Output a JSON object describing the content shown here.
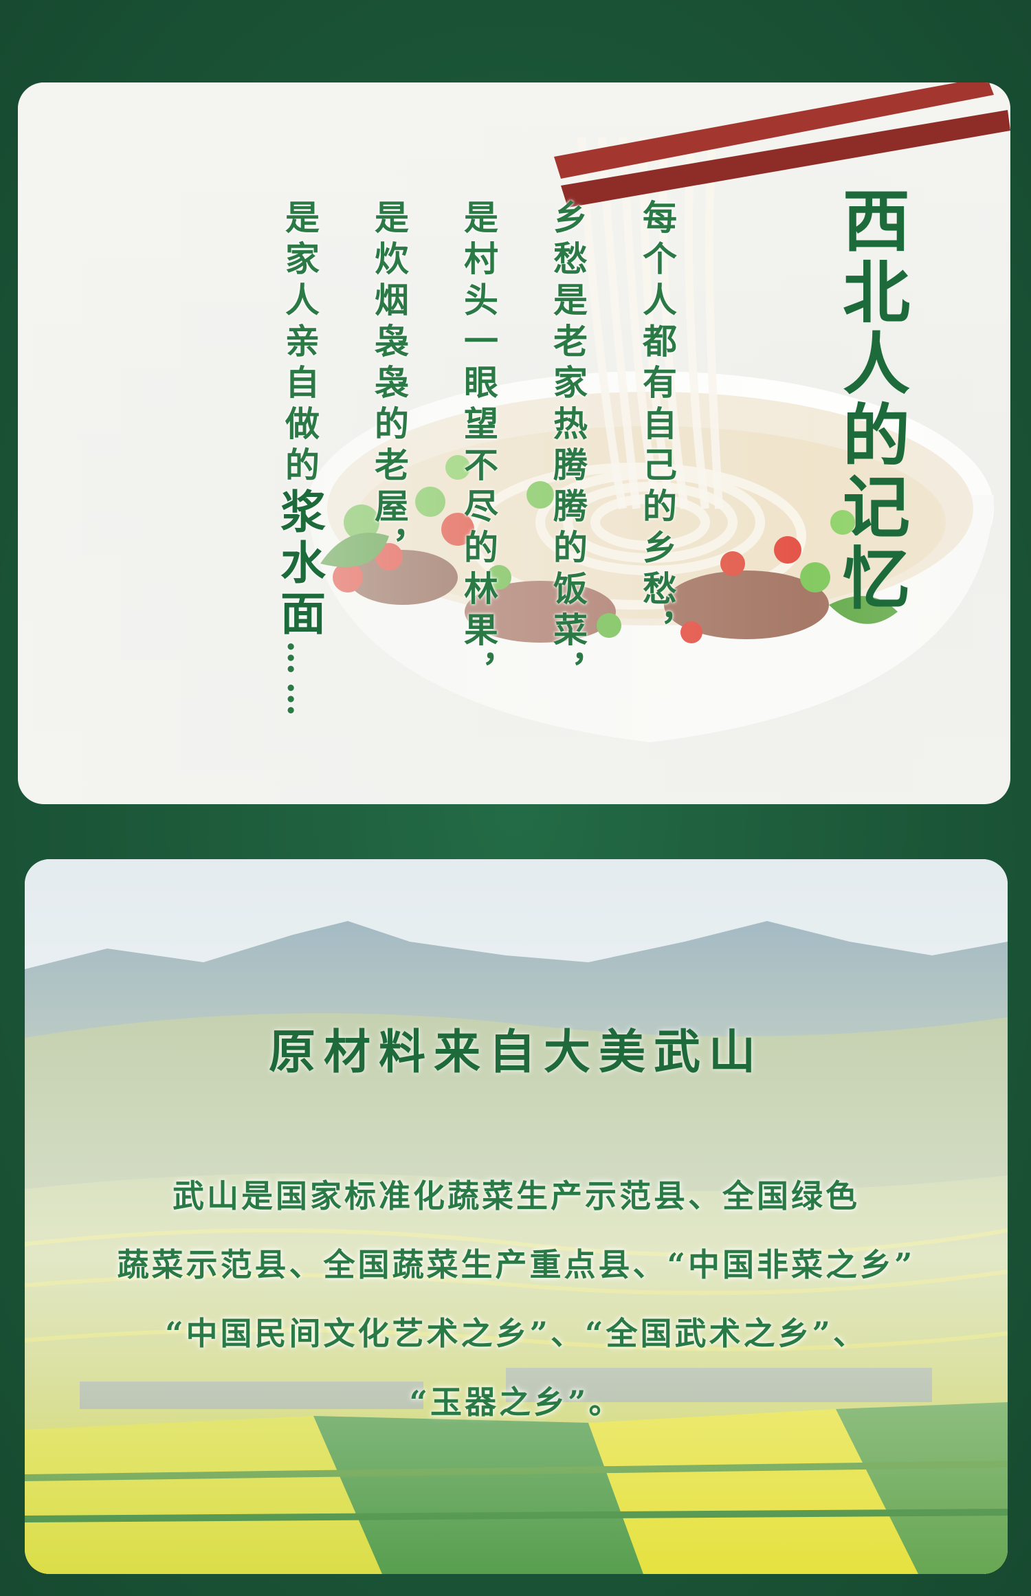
{
  "memory": {
    "title": "西北人的记忆",
    "lines": [
      "每个人都有自己的乡愁，",
      "乡愁是老家热腾腾的饭菜，",
      "是村头一眼望不尽的林果，",
      "是炊烟袅袅的老屋，",
      "是家人亲自做的"
    ],
    "emphasis": "浆水面",
    "ellipsis": "……"
  },
  "origin": {
    "title": "原材料来自大美武山",
    "body_lines": [
      "武山是国家标准化蔬菜生产示范县、全国绿色",
      "蔬菜示范县、全国蔬菜生产重点县、“中国非菜之乡”",
      "“中国民间文化艺术之乡”、“全国武术之乡”、",
      "“玉器之乡”。"
    ]
  },
  "colors": {
    "background": "#1c5a3b",
    "title_green": "#1d6b3a",
    "text_green": "#2b7a46"
  }
}
